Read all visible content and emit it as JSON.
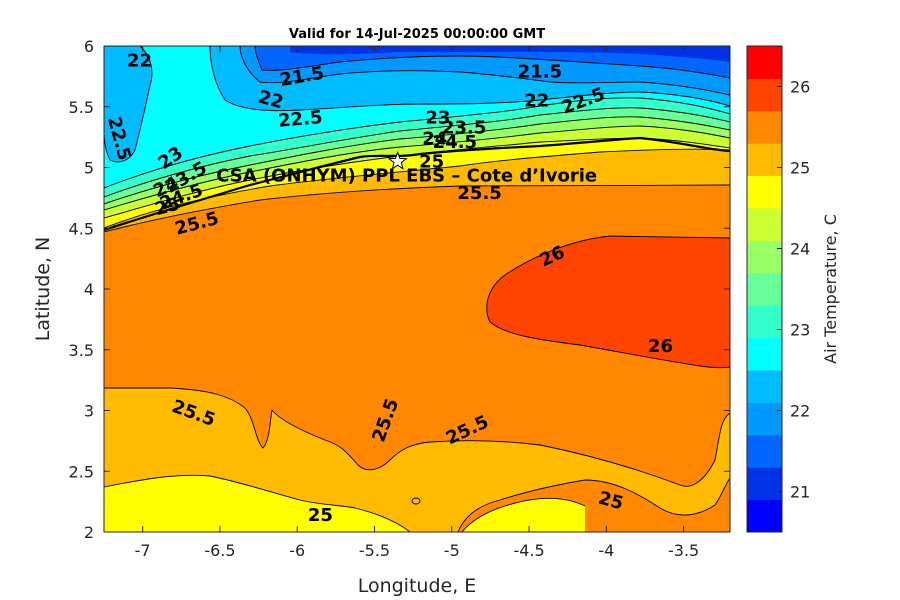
{
  "chart_data": {
    "type": "contour",
    "title": "Valid for 14-Jul-2025 00:00:00 GMT",
    "xlabel": "Longitude, E",
    "ylabel": "Latitude, N",
    "xlim": [
      -7.25,
      -3.2
    ],
    "ylim": [
      2,
      6
    ],
    "x_ticks": [
      "-7",
      "-6.5",
      "-6",
      "-5.5",
      "-5",
      "-4.5",
      "-4",
      "-3.5"
    ],
    "y_ticks": [
      "2",
      "2.5",
      "3",
      "3.5",
      "4",
      "4.5",
      "5",
      "5.5",
      "6"
    ],
    "site": {
      "name": "CSA (ONHYM) PPL EBS  – Cote d’Ivorie",
      "lon": -5.35,
      "lat": 5.05
    },
    "colorbar": {
      "label": "Air Temperature, C",
      "min": 20.5,
      "max": 26.5,
      "step": 0.5,
      "ticks": [
        "21",
        "22",
        "23",
        "24",
        "25",
        "26"
      ],
      "colors": [
        "#0000ff",
        "#0033e6",
        "#0066ff",
        "#0099ff",
        "#00bbff",
        "#00ffff",
        "#33ffcc",
        "#66ff99",
        "#99ff66",
        "#ccff33",
        "#ffff00",
        "#ffbb00",
        "#ff8800",
        "#ff4400",
        "#ff0000"
      ]
    },
    "contour_labels": [
      {
        "text": "22",
        "lon": -7.02,
        "lat": 5.88,
        "rot": 0
      },
      {
        "text": "21.5",
        "lon": -5.97,
        "lat": 5.75,
        "rot": -10
      },
      {
        "text": "21.5",
        "lon": -4.43,
        "lat": 5.79,
        "rot": 0
      },
      {
        "text": "22",
        "lon": -6.17,
        "lat": 5.56,
        "rot": 15
      },
      {
        "text": "22",
        "lon": -4.45,
        "lat": 5.55,
        "rot": 0
      },
      {
        "text": "22.5",
        "lon": -4.15,
        "lat": 5.55,
        "rot": -20
      },
      {
        "text": "22.5",
        "lon": -5.98,
        "lat": 5.4,
        "rot": -5
      },
      {
        "text": "22.5",
        "lon": -7.15,
        "lat": 5.24,
        "rot": 75
      },
      {
        "text": "23",
        "lon": -6.82,
        "lat": 5.08,
        "rot": -35
      },
      {
        "text": "23",
        "lon": -5.09,
        "lat": 5.41,
        "rot": 0
      },
      {
        "text": "23.5",
        "lon": -6.72,
        "lat": 4.92,
        "rot": -30
      },
      {
        "text": "23.5",
        "lon": -4.92,
        "lat": 5.33,
        "rot": 0
      },
      {
        "text": "24",
        "lon": -6.85,
        "lat": 4.84,
        "rot": -25
      },
      {
        "text": "24",
        "lon": -5.11,
        "lat": 5.24,
        "rot": 0
      },
      {
        "text": "24.5",
        "lon": -6.75,
        "lat": 4.76,
        "rot": -20
      },
      {
        "text": "24.5",
        "lon": -4.98,
        "lat": 5.21,
        "rot": 0
      },
      {
        "text": "25",
        "lon": -6.84,
        "lat": 4.68,
        "rot": -15
      },
      {
        "text": "25",
        "lon": -5.13,
        "lat": 5.05,
        "rot": 0
      },
      {
        "text": "25.5",
        "lon": -6.65,
        "lat": 4.54,
        "rot": -15
      },
      {
        "text": "25.5",
        "lon": -4.82,
        "lat": 4.79,
        "rot": 0
      },
      {
        "text": "26",
        "lon": -4.35,
        "lat": 4.27,
        "rot": -25
      },
      {
        "text": "26",
        "lon": -3.65,
        "lat": 3.53,
        "rot": 0
      },
      {
        "text": "25.5",
        "lon": -6.67,
        "lat": 2.98,
        "rot": 20
      },
      {
        "text": "25.5",
        "lon": -5.43,
        "lat": 2.92,
        "rot": -70
      },
      {
        "text": "25.5",
        "lon": -4.9,
        "lat": 2.84,
        "rot": -25
      },
      {
        "text": "25",
        "lon": -5.85,
        "lat": 2.14,
        "rot": 0
      },
      {
        "text": "25",
        "lon": -3.97,
        "lat": 2.26,
        "rot": 15
      }
    ]
  }
}
